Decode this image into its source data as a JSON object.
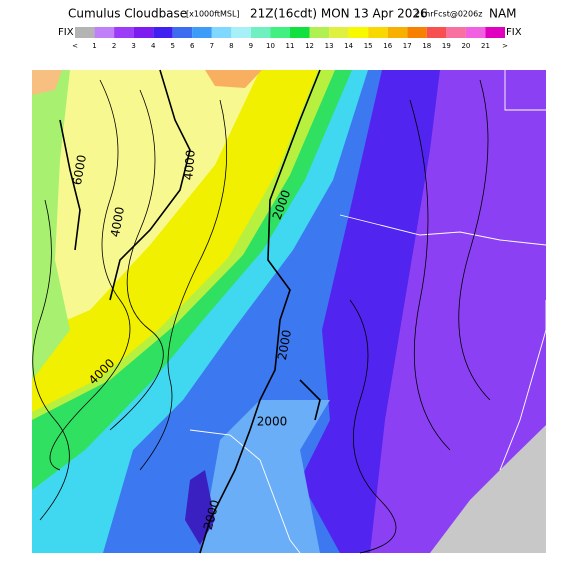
{
  "header": {
    "title": "Cumulus Cloudbase",
    "units": "[x1000ftMSL]",
    "time": "21Z(16cdt) MON 13 Apr 2026",
    "forecast": "21hrFcst@0206z",
    "model": "NAM",
    "fix_left": "FIX",
    "fix_right": "FIX"
  },
  "colorbar": {
    "labels": [
      "<",
      "1",
      "2",
      "3",
      "4",
      "5",
      "6",
      "7",
      "8",
      "9",
      "10",
      "11",
      "12",
      "13",
      "14",
      "15",
      "16",
      "17",
      "18",
      "19",
      "20",
      "21",
      ">"
    ],
    "colors": [
      "#b4b4b4",
      "#c080f8",
      "#9c3cf8",
      "#7c1cf0",
      "#4020f0",
      "#3c6cf0",
      "#3c9cf8",
      "#80d8ff",
      "#a8f0f8",
      "#70f0c0",
      "#40f080",
      "#10e040",
      "#b0f050",
      "#e0f040",
      "#f8f800",
      "#f8d800",
      "#f8b000",
      "#f88000",
      "#f85050",
      "#f870a0",
      "#f060e0",
      "#e000c0"
    ]
  },
  "contour_labels": [
    "6000",
    "4000",
    "4000",
    "2000",
    "2000",
    "2000",
    "4000",
    "2000"
  ]
}
